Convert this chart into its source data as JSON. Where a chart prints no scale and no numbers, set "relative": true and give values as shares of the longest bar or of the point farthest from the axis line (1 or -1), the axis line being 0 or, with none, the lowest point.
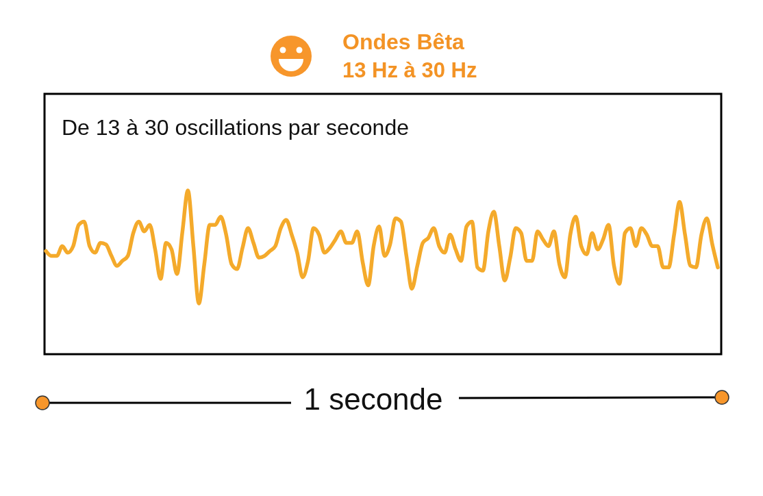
{
  "chart_data": {
    "type": "line",
    "title": "Ondes Bêta",
    "subtitle": "13 Hz à 30 Hz",
    "annotations": [
      "De 13 à 30 oscillations par seconde",
      "1 seconde"
    ],
    "relative": true,
    "categories": [
      null,
      null,
      null,
      null,
      null,
      null,
      null,
      null,
      null,
      null,
      null,
      null,
      null,
      null,
      null,
      null,
      null,
      null,
      null,
      null,
      null,
      null,
      null,
      null,
      null,
      null,
      null,
      null,
      null,
      null,
      null,
      null,
      null,
      null,
      null,
      null,
      null,
      null,
      null,
      null,
      null,
      null,
      null,
      null,
      null,
      null,
      null,
      null,
      null,
      null,
      null,
      null,
      null,
      null,
      null,
      null,
      null,
      null,
      null,
      null,
      null,
      null,
      null,
      null,
      null,
      null,
      null,
      null,
      null,
      null,
      null,
      null,
      null,
      null,
      null,
      null,
      null,
      null,
      null,
      null,
      null,
      null,
      null,
      null,
      null,
      null,
      null,
      null,
      null,
      null,
      null,
      null,
      null,
      null,
      null,
      null,
      null,
      null,
      null,
      null,
      null,
      null,
      null,
      null,
      null,
      null,
      null,
      null,
      null,
      null,
      null,
      null,
      null,
      null,
      null,
      null,
      null,
      null,
      null,
      null,
      null,
      null,
      null,
      null
    ],
    "series": [
      {
        "color": "#f4aa2b",
        "values": [
          0.63,
          0.6,
          0.6,
          0.66,
          0.62,
          0.66,
          0.79,
          0.81,
          0.66,
          0.62,
          0.68,
          0.67,
          0.6,
          0.54,
          0.57,
          0.6,
          0.74,
          0.81,
          0.75,
          0.79,
          0.64,
          0.46,
          0.68,
          0.64,
          0.49,
          0.75,
          1,
          0.66,
          0.31,
          0.55,
          0.79,
          0.79,
          0.84,
          0.73,
          0.55,
          0.52,
          0.65,
          0.77,
          0.68,
          0.59,
          0.6,
          0.63,
          0.66,
          0.77,
          0.82,
          0.73,
          0.62,
          0.47,
          0.57,
          0.77,
          0.73,
          0.62,
          0.65,
          0.7,
          0.75,
          0.68,
          0.68,
          0.75,
          0.56,
          0.42,
          0.66,
          0.78,
          0.6,
          0.67,
          0.83,
          0.81,
          0.6,
          0.4,
          0.54,
          0.68,
          0.71,
          0.77,
          0.66,
          0.62,
          0.73,
          0.64,
          0.57,
          0.78,
          0.81,
          0.53,
          0.51,
          0.75,
          0.87,
          0.66,
          0.45,
          0.59,
          0.77,
          0.74,
          0.57,
          0.57,
          0.75,
          0.7,
          0.66,
          0.75,
          0.55,
          0.47,
          0.73,
          0.84,
          0.66,
          0.61,
          0.74,
          0.64,
          0.7,
          0.79,
          0.54,
          0.43,
          0.74,
          0.77,
          0.66,
          0.77,
          0.73,
          0.66,
          0.66,
          0.53,
          0.53,
          0.73,
          0.93,
          0.73,
          0.54,
          0.53,
          0.73,
          0.83,
          0.67,
          0.53
        ]
      }
    ]
  }
}
